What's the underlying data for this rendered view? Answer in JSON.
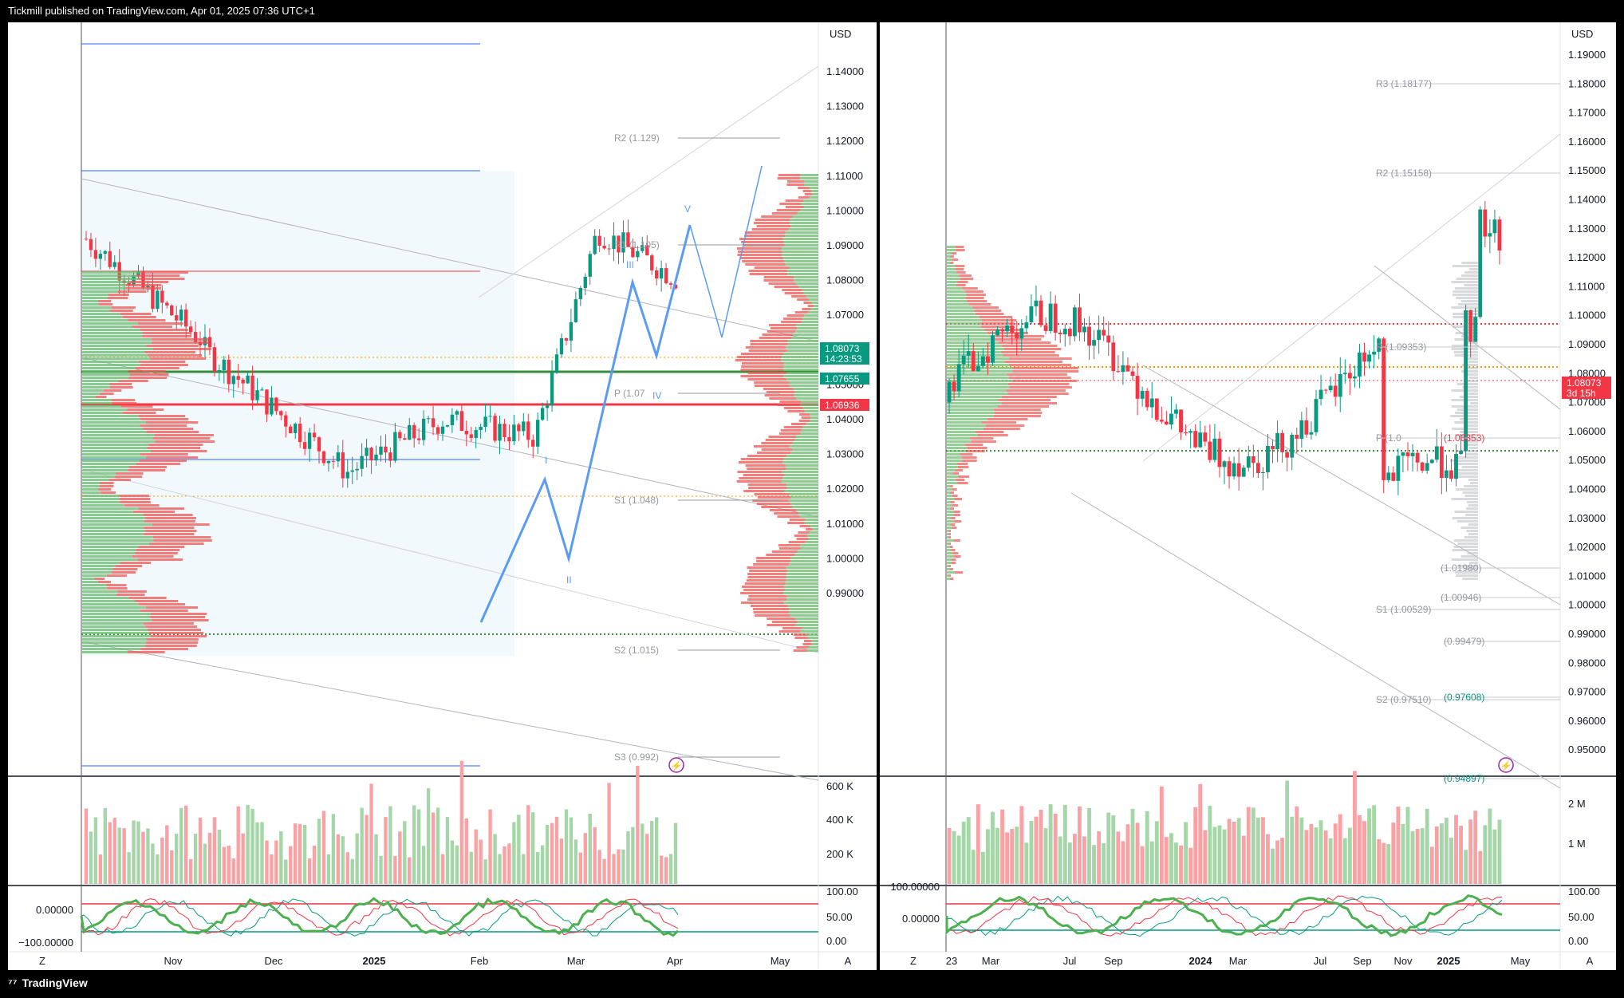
{
  "header": {
    "text": "Tickmill published on TradingView.com, Apr 01, 2025 07:36 UTC+1"
  },
  "footer": {
    "brand": "TradingView",
    "logo_icon": "tradingview-logo-icon"
  },
  "colors": {
    "up": "#089981",
    "down": "#f23645",
    "up_vol": "#a5d6a7",
    "down_vol": "#faa1a4",
    "wave": "#5b9cf2",
    "pivot": "#b2b5be"
  },
  "left_chart": {
    "currency": "USD",
    "price_ticks": [
      "1.14000",
      "1.13000",
      "1.12000",
      "1.11000",
      "1.10000",
      "1.09000",
      "1.08000",
      "1.07000",
      "1.06000",
      "1.05000",
      "1.04000",
      "1.03000",
      "1.02000",
      "1.01000",
      "1.00000",
      "0.99000"
    ],
    "time_ticks": [
      "Nov",
      "Dec",
      "2025",
      "Feb",
      "Mar",
      "Apr",
      "May"
    ],
    "volume_ticks": [
      "600 K",
      "400 K",
      "200 K"
    ],
    "osc_ticks": [
      "100.00",
      "50.00",
      "0.00"
    ],
    "osc_left_ticks": [
      "0.00000",
      "−100.00000"
    ],
    "pivots": [
      "R2 (1.129)",
      "R1 (1.105)",
      "P (1.07",
      "S1 (1.048)",
      "S2 (1.015)",
      "S3 (0.992)"
    ],
    "waves": [
      "I",
      "II",
      "III",
      "IV",
      "V"
    ],
    "price_badges": [
      {
        "text": "1.08073",
        "sub": "14:23:53",
        "color": "#089981"
      },
      {
        "text": "1.07655",
        "sub": "",
        "color": "#089981"
      },
      {
        "text": "1.06936",
        "sub": "",
        "color": "#f23645"
      }
    ],
    "corner_z": "Z",
    "corner_a": "A"
  },
  "right_chart": {
    "currency": "USD",
    "price_ticks": [
      "1.19000",
      "1.18000",
      "1.17000",
      "1.16000",
      "1.15000",
      "1.14000",
      "1.13000",
      "1.12000",
      "1.11000",
      "1.10000",
      "1.09000",
      "1.08000",
      "1.07000",
      "1.06000",
      "1.05000",
      "1.04000",
      "1.03000",
      "1.02000",
      "1.01000",
      "1.00000",
      "0.99000",
      "0.98000",
      "0.97000",
      "0.96000",
      "0.95000"
    ],
    "time_ticks": [
      "23",
      "Mar",
      "Jul",
      "Sep",
      "2024",
      "Mar",
      "Jul",
      "Sep",
      "Nov",
      "2025",
      "May"
    ],
    "volume_ticks": [
      "2 M",
      "1 M"
    ],
    "osc_ticks": [
      "100.00",
      "50.00",
      "0.00"
    ],
    "osc_left_ticks": [
      "100.00000",
      "0.00000"
    ],
    "pivots": [
      "R3 (1.18177)",
      "R2 (1.15158)",
      "R (1.09353)",
      "P (1.0",
      "(1.06353)",
      "(1.01980)",
      "(1.00946)",
      "S1 (1.00529)",
      "(0.99479)",
      "S2 (0.97510)",
      "(0.97608)",
      "(0.94897)"
    ],
    "price_badges": [
      {
        "text": "1.08073",
        "sub": "3d 15h",
        "color": "#f23645"
      }
    ],
    "corner_z": "Z",
    "corner_a": "A"
  }
}
